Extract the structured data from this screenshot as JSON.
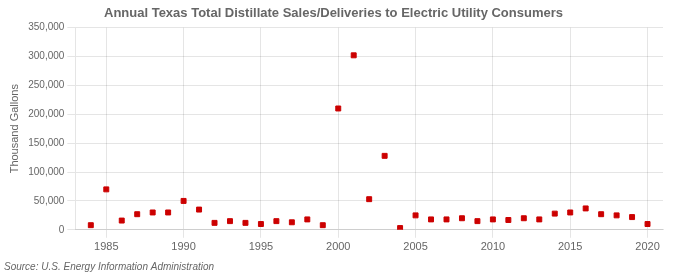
{
  "chart_data": {
    "type": "scatter",
    "title": "Annual Texas Total Distillate Sales/Deliveries to Electric Utility Consumers",
    "ylabel": "Thousand Gallons",
    "source": "Source: U.S. Energy Information Administration",
    "x": [
      1984,
      1985,
      1986,
      1987,
      1988,
      1989,
      1990,
      1991,
      1992,
      1993,
      1994,
      1995,
      1996,
      1997,
      1998,
      1999,
      2000,
      2001,
      2002,
      2003,
      2004,
      2005,
      2006,
      2007,
      2008,
      2009,
      2010,
      2011,
      2012,
      2013,
      2014,
      2015,
      2016,
      2017,
      2018,
      2019,
      2020
    ],
    "values": [
      8000,
      70000,
      16000,
      27000,
      30000,
      30000,
      50000,
      35000,
      12000,
      15000,
      12000,
      10000,
      15000,
      13000,
      18000,
      8000,
      210000,
      302000,
      53000,
      128000,
      3000,
      25000,
      18000,
      18000,
      20000,
      15000,
      18000,
      17000,
      20000,
      18000,
      28000,
      30000,
      37000,
      27000,
      25000,
      22000,
      10000
    ],
    "color": "#cc0000",
    "marker": "square",
    "xlim": [
      1983,
      2021
    ],
    "xticks": [
      1985,
      1990,
      1995,
      2000,
      2005,
      2010,
      2015,
      2020
    ],
    "ylim": [
      0,
      350000
    ],
    "yticks": [
      0,
      {
        "value": 50000,
        "label": "50,000"
      },
      {
        "value": 100000,
        "label": "100,000"
      },
      {
        "value": 150000,
        "label": "150,000"
      },
      {
        "value": 200000,
        "label": "200,000"
      },
      {
        "value": 250000,
        "label": "250,000"
      },
      {
        "value": 300000,
        "label": "300,000"
      },
      {
        "value": 350000,
        "label": "350,000"
      }
    ],
    "grid": true
  }
}
